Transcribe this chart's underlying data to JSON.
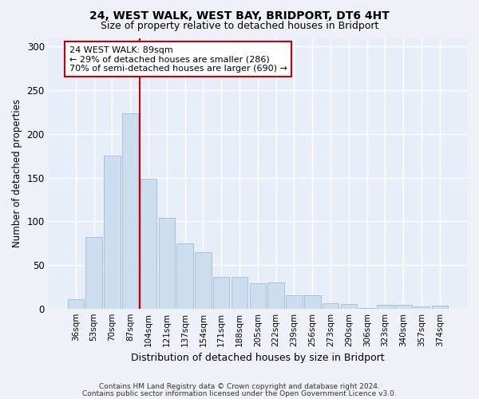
{
  "title1": "24, WEST WALK, WEST BAY, BRIDPORT, DT6 4HT",
  "title2": "Size of property relative to detached houses in Bridport",
  "xlabel": "Distribution of detached houses by size in Bridport",
  "ylabel": "Number of detached properties",
  "categories": [
    "36sqm",
    "53sqm",
    "70sqm",
    "87sqm",
    "104sqm",
    "121sqm",
    "137sqm",
    "154sqm",
    "171sqm",
    "188sqm",
    "205sqm",
    "222sqm",
    "239sqm",
    "256sqm",
    "273sqm",
    "290sqm",
    "306sqm",
    "323sqm",
    "340sqm",
    "357sqm",
    "374sqm"
  ],
  "values": [
    11,
    82,
    175,
    224,
    149,
    104,
    75,
    65,
    36,
    36,
    29,
    30,
    15,
    15,
    6,
    5,
    1,
    4,
    4,
    2,
    3
  ],
  "bar_color": "#ccddf0",
  "bar_edge_color": "#a0bcd8",
  "vline_x_pos": 3.5,
  "vline_color": "#cc0000",
  "annotation_text": "24 WEST WALK: 89sqm\n← 29% of detached houses are smaller (286)\n70% of semi-detached houses are larger (690) →",
  "annotation_box_edge": "#cc0000",
  "ylim": [
    0,
    310
  ],
  "yticks": [
    0,
    50,
    100,
    150,
    200,
    250,
    300
  ],
  "footer1": "Contains HM Land Registry data © Crown copyright and database right 2024.",
  "footer2": "Contains public sector information licensed under the Open Government Licence v3.0.",
  "bg_color": "#eef2f8",
  "plot_bg": "#e8eef8"
}
